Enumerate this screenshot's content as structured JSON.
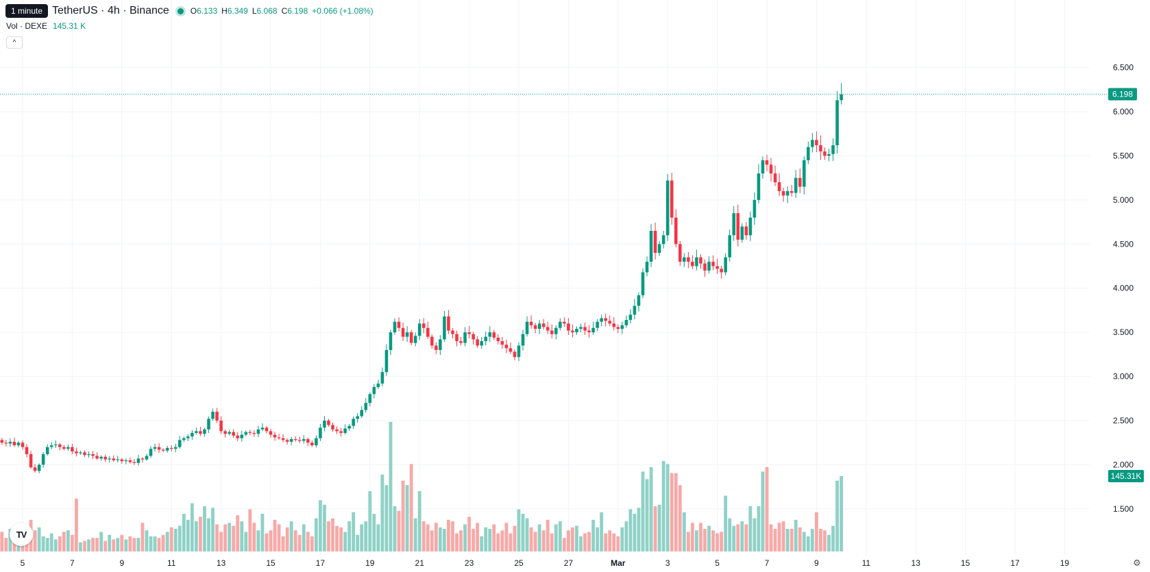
{
  "tooltip": "1 minute",
  "header": {
    "symbol": "TetherUS · 4h · Binance",
    "o_label": "O",
    "o_value": "6.133",
    "h_label": "H",
    "h_value": "6.349",
    "l_label": "L",
    "l_value": "6.068",
    "c_label": "C",
    "c_value": "6.198",
    "change": "+0.066 (+1.08%)"
  },
  "volume_header": {
    "label": "Vol · DEXE",
    "value": "145.31 K"
  },
  "colors": {
    "up": "#089981",
    "down": "#f23645",
    "up_vol": "#8fd1c7",
    "down_vol": "#f7a9a7",
    "grid": "#f0f3fa"
  },
  "icons": {
    "collapse": "chevron-up-icon",
    "logo": "tradingview-logo-icon",
    "settings": "gear-icon"
  },
  "collapse_glyph": "^",
  "logo_text": "TV",
  "settings_glyph": "⚙",
  "chart_data": {
    "type": "candlestick",
    "interval": "4h",
    "y_min": 1.25,
    "y_max": 6.8,
    "y_ticks": [
      "6.500",
      "6.000",
      "5.500",
      "5.000",
      "4.500",
      "4.000",
      "3.500",
      "3.000",
      "2.500",
      "2.000",
      "1.500"
    ],
    "x_labels": [
      {
        "label": "5",
        "day": 0
      },
      {
        "label": "7",
        "day": 2
      },
      {
        "label": "9",
        "day": 4
      },
      {
        "label": "11",
        "day": 6
      },
      {
        "label": "13",
        "day": 8
      },
      {
        "label": "15",
        "day": 10
      },
      {
        "label": "17",
        "day": 12
      },
      {
        "label": "19",
        "day": 14
      },
      {
        "label": "21",
        "day": 16
      },
      {
        "label": "23",
        "day": 18
      },
      {
        "label": "25",
        "day": 20
      },
      {
        "label": "27",
        "day": 22
      },
      {
        "label": "Mar",
        "day": 24,
        "bold": true
      },
      {
        "label": "3",
        "day": 26
      },
      {
        "label": "5",
        "day": 28
      },
      {
        "label": "7",
        "day": 30
      },
      {
        "label": "9",
        "day": 32
      },
      {
        "label": "11",
        "day": 34
      },
      {
        "label": "13",
        "day": 36
      },
      {
        "label": "15",
        "day": 38
      },
      {
        "label": "17",
        "day": 40
      },
      {
        "label": "19",
        "day": 42
      }
    ],
    "bars_per_day": 6,
    "first_bar_day": -1,
    "closes": [
      2.28,
      2.25,
      2.24,
      2.26,
      2.22,
      2.25,
      2.2,
      2.12,
      1.97,
      1.93,
      2.0,
      2.12,
      2.2,
      2.22,
      2.23,
      2.2,
      2.18,
      2.2,
      2.15,
      2.13,
      2.14,
      2.11,
      2.12,
      2.1,
      2.07,
      2.09,
      2.06,
      2.07,
      2.05,
      2.06,
      2.04,
      2.05,
      2.03,
      2.02,
      2.07,
      2.06,
      2.1,
      2.18,
      2.2,
      2.17,
      2.16,
      2.19,
      2.18,
      2.2,
      2.28,
      2.3,
      2.32,
      2.36,
      2.38,
      2.35,
      2.4,
      2.52,
      2.6,
      2.5,
      2.38,
      2.35,
      2.37,
      2.33,
      2.3,
      2.34,
      2.37,
      2.36,
      2.35,
      2.4,
      2.42,
      2.38,
      2.34,
      2.31,
      2.3,
      2.28,
      2.26,
      2.29,
      2.28,
      2.27,
      2.29,
      2.25,
      2.22,
      2.3,
      2.42,
      2.5,
      2.45,
      2.4,
      2.38,
      2.36,
      2.41,
      2.44,
      2.52,
      2.55,
      2.62,
      2.7,
      2.8,
      2.88,
      2.92,
      3.05,
      3.3,
      3.5,
      3.62,
      3.55,
      3.45,
      3.5,
      3.38,
      3.46,
      3.6,
      3.55,
      3.45,
      3.35,
      3.3,
      3.42,
      3.68,
      3.52,
      3.48,
      3.4,
      3.38,
      3.5,
      3.48,
      3.42,
      3.35,
      3.4,
      3.45,
      3.5,
      3.44,
      3.4,
      3.36,
      3.32,
      3.28,
      3.22,
      3.35,
      3.48,
      3.62,
      3.58,
      3.54,
      3.6,
      3.56,
      3.52,
      3.48,
      3.55,
      3.62,
      3.6,
      3.52,
      3.5,
      3.54,
      3.56,
      3.52,
      3.5,
      3.55,
      3.62,
      3.66,
      3.63,
      3.6,
      3.56,
      3.54,
      3.58,
      3.64,
      3.7,
      3.8,
      3.92,
      4.18,
      4.3,
      4.65,
      4.4,
      4.5,
      4.6,
      5.22,
      4.8,
      4.5,
      4.3,
      4.35,
      4.3,
      4.25,
      4.35,
      4.28,
      4.2,
      4.3,
      4.25,
      4.22,
      4.18,
      4.35,
      4.6,
      4.85,
      4.55,
      4.7,
      4.6,
      4.8,
      5.0,
      5.3,
      5.45,
      5.4,
      5.3,
      5.2,
      5.1,
      5.05,
      5.1,
      5.08,
      5.25,
      5.15,
      5.45,
      5.6,
      5.68,
      5.62,
      5.55,
      5.5,
      5.52,
      5.62,
      6.13,
      6.198
    ],
    "volumes": [
      140,
      130,
      90,
      150,
      140,
      120,
      80,
      110,
      210,
      140,
      160,
      100,
      90,
      120,
      80,
      100,
      130,
      140,
      110,
      350,
      60,
      70,
      80,
      90,
      90,
      130,
      70,
      110,
      80,
      90,
      110,
      80,
      100,
      90,
      90,
      190,
      140,
      100,
      100,
      90,
      110,
      130,
      160,
      150,
      170,
      250,
      210,
      320,
      200,
      230,
      300,
      220,
      290,
      180,
      130,
      180,
      190,
      170,
      240,
      200,
      130,
      280,
      190,
      140,
      250,
      120,
      140,
      210,
      180,
      100,
      160,
      200,
      140,
      110,
      180,
      130,
      100,
      220,
      340,
      310,
      200,
      220,
      170,
      160,
      130,
      200,
      260,
      110,
      180,
      200,
      400,
      250,
      180,
      510,
      440,
      860,
      300,
      270,
      470,
      440,
      580,
      220,
      400,
      200,
      180,
      140,
      190,
      160,
      150,
      210,
      200,
      120,
      140,
      180,
      230,
      150,
      190,
      100,
      160,
      150,
      180,
      120,
      140,
      190,
      120,
      170,
      280,
      250,
      220,
      160,
      130,
      180,
      140,
      210,
      120,
      180,
      200,
      90,
      140,
      160,
      170,
      100,
      120,
      130,
      210,
      160,
      260,
      120,
      140,
      120,
      100,
      160,
      200,
      280,
      250,
      290,
      530,
      480,
      560,
      300,
      310,
      600,
      580,
      520,
      520,
      440,
      260,
      130,
      190,
      140,
      190,
      150,
      170,
      140,
      120,
      130,
      370,
      220,
      170,
      180,
      200,
      180,
      300,
      220,
      300,
      530,
      560,
      180,
      150,
      190,
      200,
      150,
      150,
      210,
      160,
      130,
      100,
      150,
      260,
      150,
      140,
      110,
      170,
      470,
      500
    ]
  }
}
